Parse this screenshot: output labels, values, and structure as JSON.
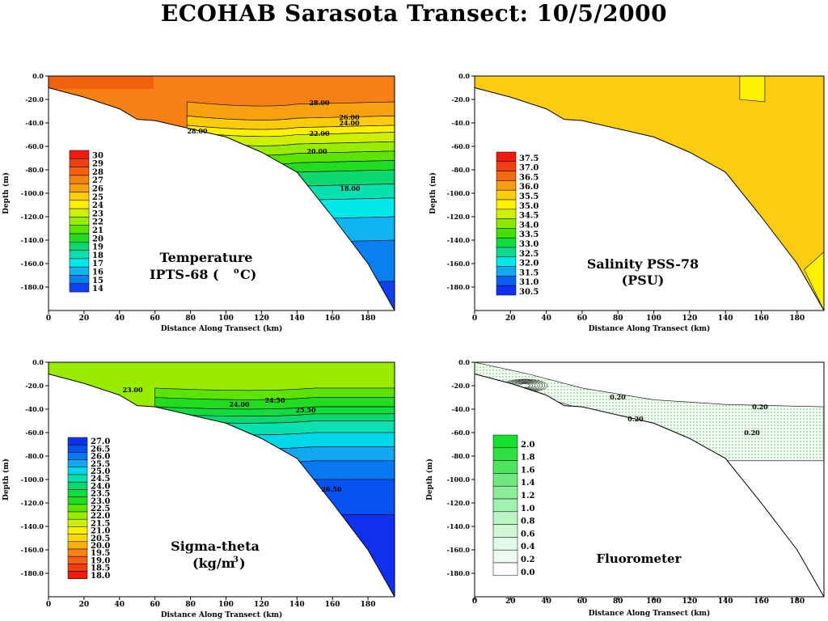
{
  "title": "ECOHAB Sarasota Transect: 10/5/2000",
  "chart_data": [
    {
      "type": "contour",
      "id": "temperature",
      "xlabel": "Distance Along Transect (km)",
      "ylabel": "Depth (m)",
      "xlim": [
        0,
        195
      ],
      "ylim": [
        -200,
        0
      ],
      "x_ticks": [
        "0",
        "20",
        "40",
        "60",
        "80",
        "100",
        "120",
        "140",
        "160",
        "180"
      ],
      "y_ticks": [
        "0.0",
        "-20.0",
        "-40.0",
        "-60.0",
        "-80.0",
        "-100.0",
        "-120.0",
        "-140.0",
        "-160.0",
        "-180.0"
      ],
      "label_lines": [
        "Temperature",
        "IPTS-68 (",
        "C)"
      ],
      "legend_levels": [
        "30",
        "29",
        "28",
        "27",
        "26",
        "25",
        "24",
        "23",
        "22",
        "21",
        "20",
        "19",
        "18",
        "17",
        "16",
        "15",
        "14"
      ],
      "legend_colors": [
        "#ee1c10",
        "#f0400c",
        "#f26010",
        "#f58014",
        "#f8a010",
        "#fccc08",
        "#fff000",
        "#ccf000",
        "#99ec00",
        "#5ce400",
        "#22dc20",
        "#0cd870",
        "#08e0b0",
        "#00e8e8",
        "#10b4f0",
        "#0880f0",
        "#1040f0"
      ],
      "contour_labels": [
        "28.00",
        "26.00",
        "24.00",
        "22.00",
        "20.00",
        "18.00",
        "28.00"
      ]
    },
    {
      "type": "contour",
      "id": "salinity",
      "xlabel": "Distance Along Transect (km)",
      "ylabel": "Depth (m)",
      "xlim": [
        0,
        195
      ],
      "ylim": [
        -200,
        0
      ],
      "x_ticks": [
        "0",
        "20",
        "40",
        "60",
        "80",
        "100",
        "120",
        "140",
        "160",
        "180"
      ],
      "y_ticks": [
        "0.0",
        "-20.0",
        "-40.0",
        "-60.0",
        "-80.0",
        "-100.0",
        "-120.0",
        "-140.0",
        "-160.0",
        "-180.0"
      ],
      "label_lines": [
        "Salinity PSS-78",
        "(PSU)"
      ],
      "legend_levels": [
        "37.5",
        "37.0",
        "36.5",
        "36.0",
        "35.5",
        "35.0",
        "34.5",
        "34.0",
        "33.5",
        "33.0",
        "32.5",
        "32.0",
        "31.5",
        "31.0",
        "30.5"
      ],
      "legend_colors": [
        "#ee1c10",
        "#f04010",
        "#f26a10",
        "#f59c10",
        "#fccc10",
        "#fff000",
        "#ccf000",
        "#88e800",
        "#44e000",
        "#10dc40",
        "#0cd890",
        "#00e8e8",
        "#10a8f0",
        "#0860f0",
        "#1030f0"
      ]
    },
    {
      "type": "contour",
      "id": "sigma_theta",
      "xlabel": "Distance Along Transect (km)",
      "ylabel": "Depth (m)",
      "xlim": [
        0,
        195
      ],
      "ylim": [
        -200,
        0
      ],
      "x_ticks": [
        "0",
        "20",
        "40",
        "60",
        "80",
        "100",
        "120",
        "140",
        "160",
        "180"
      ],
      "y_ticks": [
        "0.0",
        "-20.0",
        "-40.0",
        "-60.0",
        "-80.0",
        "-100.0",
        "-120.0",
        "-140.0",
        "-160.0",
        "-180.0"
      ],
      "label_lines": [
        "Sigma-theta",
        "(kg/m",
        ")"
      ],
      "legend_levels": [
        "27.0",
        "26.5",
        "26.0",
        "25.5",
        "25.0",
        "24.5",
        "24.0",
        "23.5",
        "23.0",
        "22.5",
        "22.0",
        "21.5",
        "21.0",
        "20.5",
        "20.0",
        "19.5",
        "19.0",
        "18.5",
        "18.0"
      ],
      "legend_colors": [
        "#1030f0",
        "#0850f0",
        "#0878f0",
        "#10a8f0",
        "#00d8e8",
        "#08e0b0",
        "#0cd870",
        "#10dc40",
        "#22dc20",
        "#5ce400",
        "#99ec00",
        "#ccf000",
        "#fff000",
        "#fcd808",
        "#f8b010",
        "#f58014",
        "#f26010",
        "#f0400c",
        "#ee1c10"
      ],
      "contour_labels": [
        "23.00",
        "24.00",
        "24.50",
        "25.50",
        "26.50"
      ]
    },
    {
      "type": "contour",
      "id": "fluorometer",
      "xlabel": "Distance Along Transect (km)",
      "ylabel": "Depth (m)",
      "xlim": [
        0,
        195
      ],
      "ylim": [
        -200,
        0
      ],
      "x_ticks": [
        "0",
        "20",
        "40",
        "60",
        "80",
        "100",
        "120",
        "140",
        "160",
        "180"
      ],
      "y_ticks": [
        "0.0",
        "-20.0",
        "-40.0",
        "-60.0",
        "-80.0",
        "-100.0",
        "-120.0",
        "-140.0",
        "-160.0",
        "-180.0"
      ],
      "label_lines": [
        "Fluorometer"
      ],
      "legend_levels": [
        "2.0",
        "1.8",
        "1.6",
        "1.4",
        "1.2",
        "1.0",
        "0.8",
        "0.6",
        "0.4",
        "0.2",
        "0.0"
      ],
      "legend_colors": [
        "#18e030",
        "#30e040",
        "#50e460",
        "#70e880",
        "#8cec98",
        "#a4f0ae",
        "#bcf4c4",
        "#d0f6d6",
        "#e2f9e6",
        "#eefcf0",
        "#ffffff"
      ],
      "contour_labels": [
        "0.20",
        "0.20",
        "0.20",
        "0.20"
      ]
    }
  ]
}
